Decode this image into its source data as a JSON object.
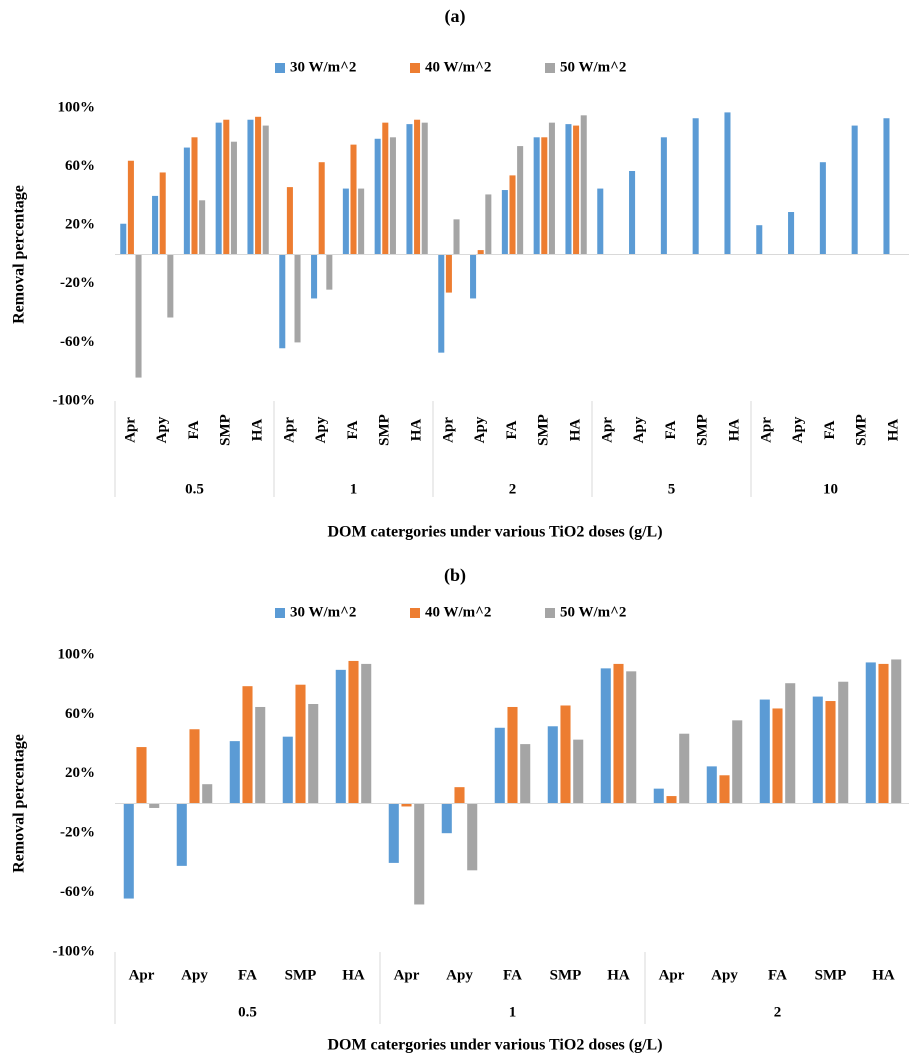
{
  "chart_data": [
    {
      "type": "bar",
      "title": "(a)",
      "x_label": "DOM catergories under various TiO2 doses (g/L)",
      "y_label": "Removal percentage",
      "categories": [
        "Apr",
        "Apy",
        "FA",
        "SMP",
        "HA",
        "Apr",
        "Apy",
        "FA",
        "SMP",
        "HA",
        "Apr",
        "Apy",
        "FA",
        "SMP",
        "HA",
        "Apr",
        "Apy",
        "FA",
        "SMP",
        "HA",
        "Apr",
        "Apy",
        "FA",
        "SMP",
        "HA"
      ],
      "groups": [
        "0.5",
        "1",
        "2",
        "5",
        "10"
      ],
      "series": [
        {
          "name": "30 W/m^2",
          "color": "#5b9bd5",
          "values": [
            21,
            40,
            73,
            90,
            92,
            -64,
            -30,
            45,
            79,
            89,
            -67,
            -30,
            44,
            80,
            89,
            45,
            57,
            80,
            93,
            97,
            20,
            29,
            63,
            88,
            93
          ]
        },
        {
          "name": "40 W/m^2",
          "color": "#ed7d31",
          "values": [
            64,
            56,
            80,
            92,
            94,
            46,
            63,
            75,
            90,
            92,
            -26,
            3,
            54,
            80,
            88,
            null,
            null,
            null,
            null,
            null,
            null,
            null,
            null,
            null,
            null
          ]
        },
        {
          "name": "50 W/m^2",
          "color": "#a5a5a5",
          "values": [
            -84,
            -43,
            37,
            77,
            88,
            -60,
            -24,
            45,
            80,
            90,
            24,
            41,
            74,
            90,
            95,
            null,
            null,
            null,
            null,
            null,
            null,
            null,
            null,
            null,
            null
          ]
        }
      ],
      "ylim": [
        -100,
        100
      ],
      "yticks": [
        {
          "value": -100,
          "label": "-100%"
        },
        {
          "value": -60,
          "label": "-60%"
        },
        {
          "value": -20,
          "label": "-20%"
        },
        {
          "value": 20,
          "label": "20%"
        },
        {
          "value": 60,
          "label": "60%"
        },
        {
          "value": 100,
          "label": "100%"
        }
      ],
      "legend": "top"
    },
    {
      "type": "bar",
      "title": "(b)",
      "x_label": "DOM catergories under various TiO2 doses (g/L)",
      "y_label": "Removal percentage",
      "categories": [
        "Apr",
        "Apy",
        "FA",
        "SMP",
        "HA",
        "Apr",
        "Apy",
        "FA",
        "SMP",
        "HA",
        "Apr",
        "Apy",
        "FA",
        "SMP",
        "HA"
      ],
      "groups": [
        "0.5",
        "1",
        "2"
      ],
      "series": [
        {
          "name": "30 W/m^2",
          "color": "#5b9bd5",
          "values": [
            -64,
            -42,
            42,
            45,
            90,
            -40,
            -20,
            51,
            52,
            91,
            10,
            25,
            70,
            72,
            95
          ]
        },
        {
          "name": "40 W/m^2",
          "color": "#ed7d31",
          "values": [
            38,
            50,
            79,
            80,
            96,
            -2,
            11,
            65,
            66,
            94,
            5,
            19,
            64,
            69,
            94
          ]
        },
        {
          "name": "50 W/m^2",
          "color": "#a5a5a5",
          "values": [
            -3,
            13,
            65,
            67,
            94,
            -68,
            -45,
            40,
            43,
            89,
            47,
            56,
            81,
            82,
            97
          ]
        }
      ],
      "ylim": [
        -100,
        100
      ],
      "yticks": [
        {
          "value": -100,
          "label": "-100%"
        },
        {
          "value": -60,
          "label": "-60%"
        },
        {
          "value": -20,
          "label": "-20%"
        },
        {
          "value": 20,
          "label": "20%"
        },
        {
          "value": 60,
          "label": "60%"
        },
        {
          "value": 100,
          "label": "100%"
        }
      ],
      "legend": "top"
    }
  ]
}
